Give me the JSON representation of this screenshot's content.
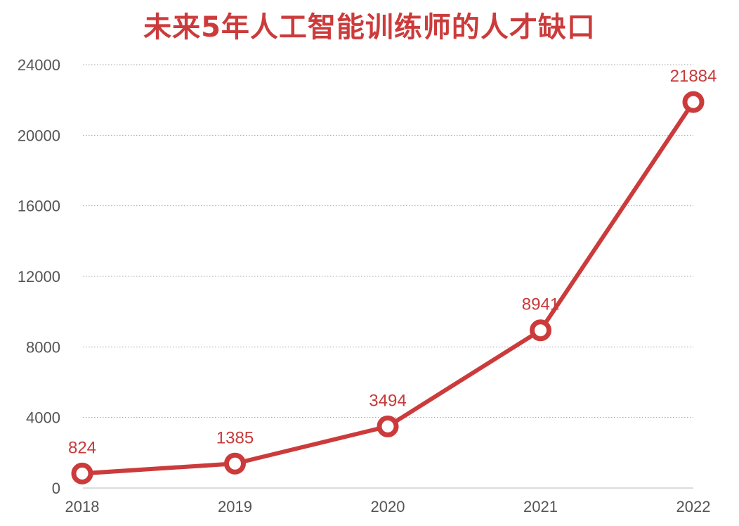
{
  "chart_data": {
    "type": "line",
    "title": "未来5年人工智能训练师的人才缺口",
    "categories": [
      "2018",
      "2019",
      "2020",
      "2021",
      "2022"
    ],
    "series": [
      {
        "values": [
          824,
          1385,
          3494,
          8941,
          21884
        ]
      }
    ],
    "data_labels": [
      "824",
      "1385",
      "3494",
      "8941",
      "21884"
    ],
    "y_ticks": [
      "0",
      "4000",
      "8000",
      "12000",
      "16000",
      "20000",
      "24000"
    ],
    "ylim": [
      0,
      24000
    ],
    "xlabel": "",
    "ylabel": "",
    "grid": true,
    "legend": "none",
    "colors": {
      "line": "#cc3b3b",
      "title": "#cc3b3b",
      "label": "#c73a3a",
      "grid": "#9fa3a8",
      "axis": "#c8c8c8",
      "tick": "#555555"
    }
  }
}
